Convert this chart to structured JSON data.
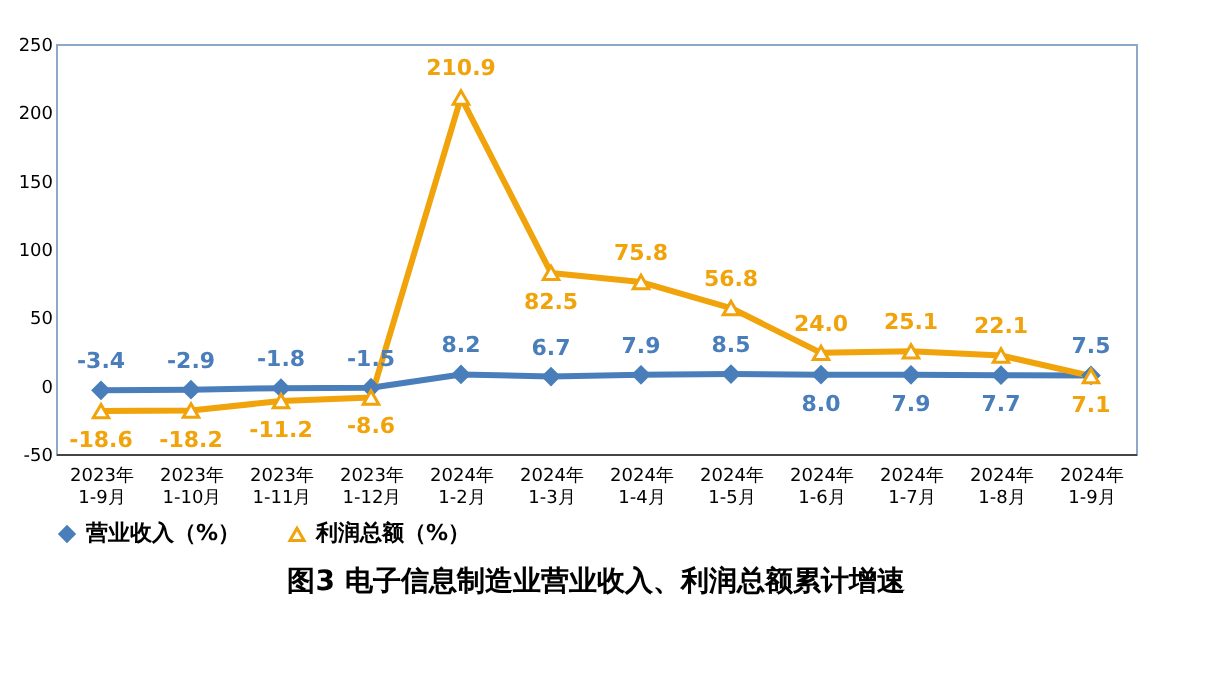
{
  "chart_data": {
    "type": "line",
    "title": "图3  电子信息制造业营业收入、利润总额累计增速",
    "categories": [
      "2023年\n1-9月",
      "2023年\n1-10月",
      "2023年\n1-11月",
      "2023年\n1-12月",
      "2024年\n1-2月",
      "2024年\n1-3月",
      "2024年\n1-4月",
      "2024年\n1-5月",
      "2024年\n1-6月",
      "2024年\n1-7月",
      "2024年\n1-8月",
      "2024年\n1-9月"
    ],
    "series": [
      {
        "name": "营业收入（%）",
        "color": "#4a7ebb",
        "marker": "diamond",
        "values": [
          -3.4,
          -2.9,
          -1.8,
          -1.5,
          8.2,
          6.7,
          7.9,
          8.5,
          8.0,
          7.9,
          7.7,
          7.5
        ],
        "value_labels": [
          "-3.4",
          "-2.9",
          "-1.8",
          "-1.5",
          "8.2",
          "6.7",
          "7.9",
          "8.5",
          "8.0",
          "7.9",
          "7.7",
          "7.5"
        ]
      },
      {
        "name": "利润总额（%）",
        "color": "#f0a30a",
        "marker": "triangle",
        "values": [
          -18.6,
          -18.2,
          -11.2,
          -8.6,
          210.9,
          82.5,
          75.8,
          56.8,
          24.0,
          25.1,
          22.1,
          7.1
        ],
        "value_labels": [
          "-18.6",
          "-18.2",
          "-11.2",
          "-8.6",
          "210.9",
          "82.5",
          "75.8",
          "56.8",
          "24.0",
          "25.1",
          "22.1",
          "7.1"
        ]
      }
    ],
    "ylim": [
      -50,
      250
    ],
    "yticks": [
      -50,
      0,
      50,
      100,
      150,
      200,
      250
    ],
    "grid": false,
    "legend": "bottom"
  }
}
